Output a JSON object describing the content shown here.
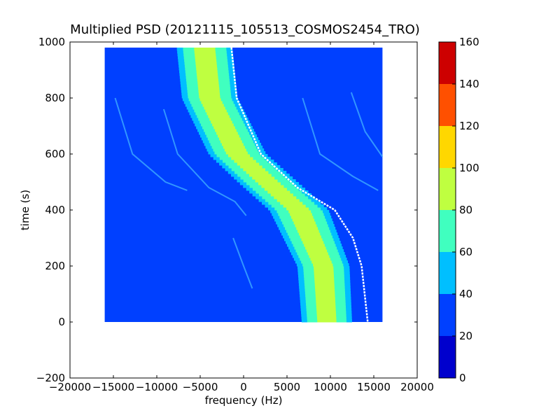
{
  "chart_data": {
    "type": "heatmap",
    "title": "Multiplied PSD (20121115_105513_COSMOS2454_TRO)",
    "xlabel": "frequency (Hz)",
    "ylabel": "time (s)",
    "xlim": [
      -20000,
      20000
    ],
    "ylim": [
      -200,
      1000
    ],
    "xticks": [
      -20000,
      -15000,
      -10000,
      -5000,
      0,
      5000,
      10000,
      15000,
      20000
    ],
    "xtick_labels": [
      "−20000",
      "−15000",
      "−10000",
      "−5000",
      "0",
      "5000",
      "10000",
      "15000",
      "20000"
    ],
    "yticks": [
      -200,
      0,
      200,
      400,
      600,
      800,
      1000
    ],
    "ytick_labels": [
      "−200",
      "0",
      "200",
      "400",
      "600",
      "800",
      "1000"
    ],
    "data_extent": {
      "x": [
        -16000,
        16000
      ],
      "y": [
        0,
        980
      ]
    },
    "colorbar": {
      "ticks": [
        0,
        20,
        40,
        60,
        80,
        100,
        120,
        140,
        160
      ],
      "tick_labels": [
        "0",
        "20",
        "40",
        "60",
        "80",
        "100",
        "120",
        "140",
        "160"
      ],
      "levels": [
        {
          "from": 0,
          "to": 20,
          "color": "#0000cd"
        },
        {
          "from": 20,
          "to": 40,
          "color": "#0040ff"
        },
        {
          "from": 40,
          "to": 60,
          "color": "#00bfff"
        },
        {
          "from": 60,
          "to": 80,
          "color": "#40ffbf"
        },
        {
          "from": 80,
          "to": 100,
          "color": "#bfff40"
        },
        {
          "from": 100,
          "to": 120,
          "color": "#ffd700"
        },
        {
          "from": 120,
          "to": 140,
          "color": "#ff5000"
        },
        {
          "from": 140,
          "to": 160,
          "color": "#cd0000"
        }
      ]
    },
    "background_level": 25,
    "doppler_band": {
      "description_points": [
        {
          "t": 980,
          "center_freq": -4500,
          "halfwidth": 3200
        },
        {
          "t": 800,
          "center_freq": -3900,
          "halfwidth": 3200
        },
        {
          "t": 600,
          "center_freq": -700,
          "halfwidth": 3300
        },
        {
          "t": 500,
          "center_freq": 2800,
          "halfwidth": 3400
        },
        {
          "t": 400,
          "center_freq": 6400,
          "halfwidth": 3400
        },
        {
          "t": 200,
          "center_freq": 9200,
          "halfwidth": 3000
        },
        {
          "t": 0,
          "center_freq": 9600,
          "halfwidth": 2900
        }
      ],
      "core_level": 85,
      "edge_level": 65
    },
    "doppler_trace_white": {
      "points": [
        {
          "t": 980,
          "f": -1400
        },
        {
          "t": 800,
          "f": -800
        },
        {
          "t": 600,
          "f": 2000
        },
        {
          "t": 480,
          "f": 6200
        },
        {
          "t": 400,
          "f": 10500
        },
        {
          "t": 300,
          "f": 12600
        },
        {
          "t": 200,
          "f": 13600
        },
        {
          "t": 0,
          "f": 14300
        }
      ]
    },
    "faint_traces": [
      {
        "points": [
          {
            "t": 800,
            "f": -14800
          },
          {
            "t": 600,
            "f": -12800
          },
          {
            "t": 500,
            "f": -9000
          },
          {
            "t": 470,
            "f": -6500
          }
        ]
      },
      {
        "points": [
          {
            "t": 760,
            "f": -9200
          },
          {
            "t": 600,
            "f": -7600
          },
          {
            "t": 480,
            "f": -4000
          },
          {
            "t": 430,
            "f": -1000
          },
          {
            "t": 380,
            "f": 300
          }
        ]
      },
      {
        "points": [
          {
            "t": 300,
            "f": -1200
          },
          {
            "t": 200,
            "f": 0
          },
          {
            "t": 120,
            "f": 1000
          }
        ]
      },
      {
        "points": [
          {
            "t": 800,
            "f": 6800
          },
          {
            "t": 600,
            "f": 8800
          },
          {
            "t": 520,
            "f": 12600
          },
          {
            "t": 470,
            "f": 15500
          }
        ]
      },
      {
        "points": [
          {
            "t": 820,
            "f": 12400
          },
          {
            "t": 680,
            "f": 14000
          },
          {
            "t": 590,
            "f": 16000
          }
        ]
      }
    ],
    "grid": false,
    "legend": "none"
  }
}
